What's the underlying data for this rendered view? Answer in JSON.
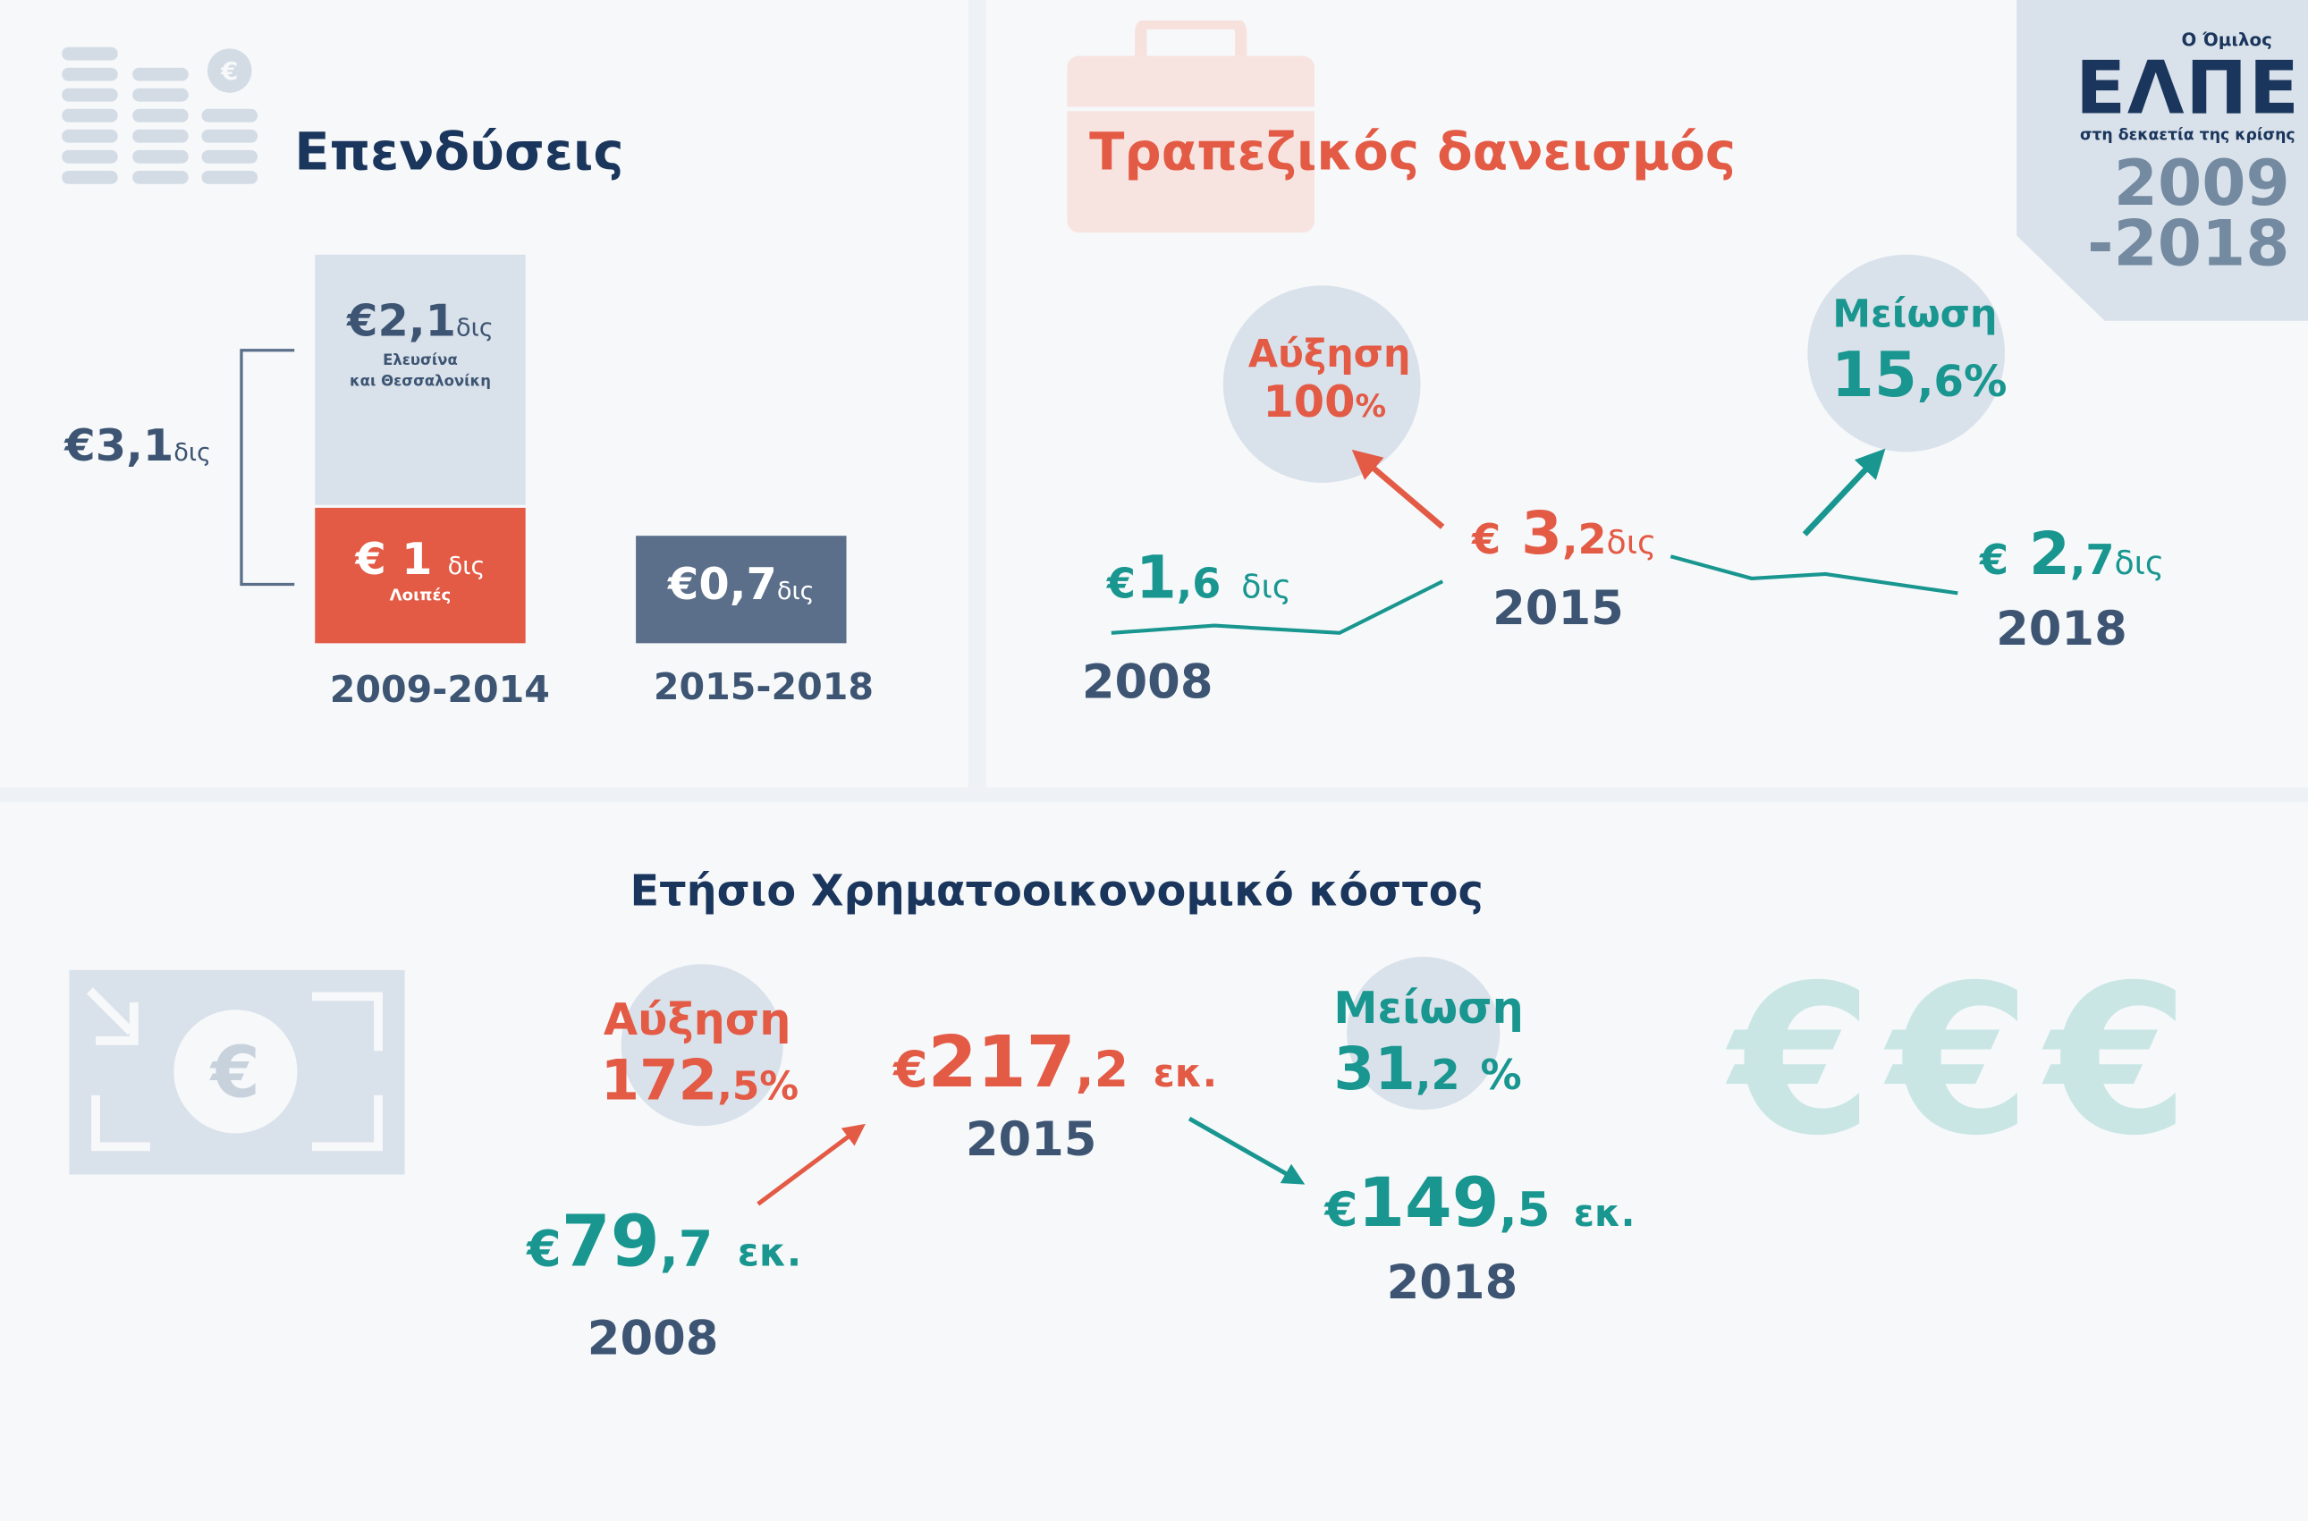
{
  "colors": {
    "navy": "#1b365d",
    "slate": "#3d5573",
    "red": "#e35a45",
    "teal": "#18968f",
    "light": "#d9e1ea",
    "bar_dark": "#5b6f8a"
  },
  "logo": {
    "small": "Ο Όμιλος",
    "brand": "ΕΛΠΕ",
    "tagline": "στη δεκαετία της κρίσης",
    "years_1": "2009",
    "years_2": "-2018"
  },
  "investments": {
    "title": "Επενδύσεις",
    "icon": "coins-euro-icon",
    "total": {
      "currency": "€",
      "value": "3,1",
      "unit": "δις"
    },
    "bars": [
      {
        "period": "2009-2014",
        "segments": [
          {
            "currency": "€",
            "value": "2,1",
            "unit": "δις",
            "label_1": "Ελευσίνα",
            "label_2": "και Θεσσαλονίκη"
          },
          {
            "currency": "€",
            "value": "1",
            "unit": "δις",
            "label_1": "Λοιπές"
          }
        ]
      },
      {
        "period": "2015-2018",
        "segments": [
          {
            "currency": "€",
            "value": "0,7",
            "unit": "δις"
          }
        ]
      }
    ]
  },
  "loans": {
    "title": "Τραπεζικός δανεισμός",
    "icon": "briefcase-icon",
    "points": [
      {
        "year": "2008",
        "currency": "€",
        "int": "1",
        "dec": ",6",
        "unit": "δις"
      },
      {
        "year": "2015",
        "currency": "€",
        "int": "3",
        "dec": ",2",
        "unit": "δις"
      },
      {
        "year": "2018",
        "currency": "€",
        "int": "2",
        "dec": ",7",
        "unit": "δις"
      }
    ],
    "increase": {
      "label": "Αύξηση",
      "int": "100",
      "dec": "",
      "pct": "%"
    },
    "decrease": {
      "label": "Μείωση",
      "int": "15",
      "dec": ",6",
      "pct": "%"
    }
  },
  "finance_cost": {
    "title": "Ετήσιο Χρηματοοικονομικό κόστος",
    "icon": "banknote-euro-icon",
    "points": [
      {
        "year": "2008",
        "currency": "€",
        "int": "79",
        "dec": ",7",
        "unit": "εκ."
      },
      {
        "year": "2015",
        "currency": "€",
        "int": "217",
        "dec": ",2",
        "unit": "εκ."
      },
      {
        "year": "2018",
        "currency": "€",
        "int": "149",
        "dec": ",5",
        "unit": "εκ."
      }
    ],
    "increase": {
      "label": "Αύξηση",
      "int": "172",
      "dec": ",5",
      "pct": "%"
    },
    "decrease": {
      "label": "Μείωση",
      "int": "31",
      "dec": ",2",
      "pct": "%"
    },
    "euro_deco": [
      "€",
      "€",
      "€"
    ]
  }
}
